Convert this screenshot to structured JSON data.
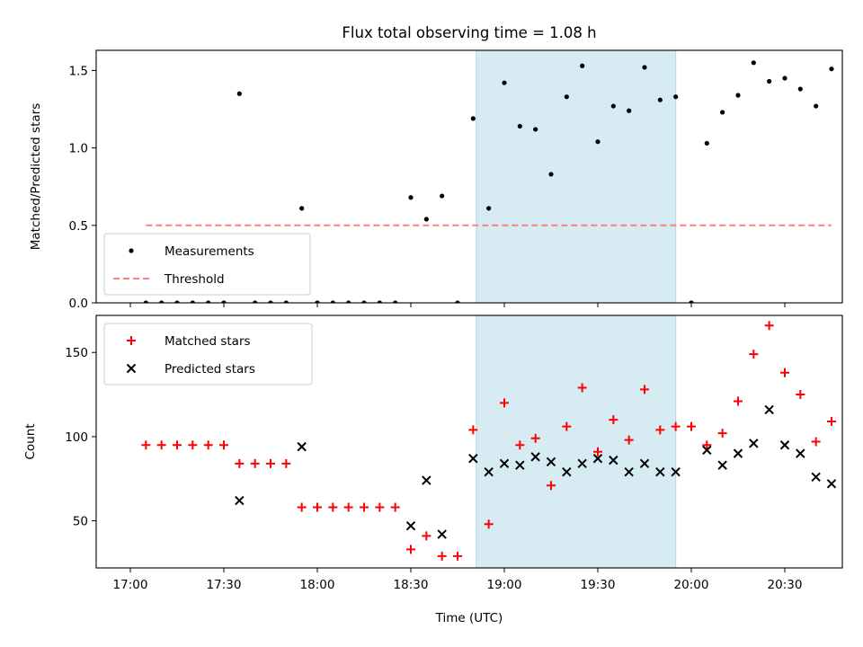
{
  "figure": {
    "title": "Flux total observing time = 1.08 h",
    "xlabel": "Time (UTC)",
    "x_ticks": [
      "17:00",
      "17:30",
      "18:00",
      "18:30",
      "19:00",
      "19:30",
      "20:00",
      "20:30"
    ],
    "shaded_interval": [
      "18:51",
      "19:55"
    ],
    "colors": {
      "shade": "#add8e6",
      "threshold": "#ff7f7f",
      "matched": "#ff0000",
      "predicted": "#000000",
      "measurement": "#000000"
    }
  },
  "chart_data": [
    {
      "type": "scatter",
      "panel": "top",
      "ylabel": "Matched/Predicted stars",
      "ylim": [
        0,
        1.63
      ],
      "yticks": [
        0.0,
        0.5,
        1.0,
        1.5
      ],
      "ytick_labels": [
        "0.0",
        "0.5",
        "1.0",
        "1.5"
      ],
      "legend_position": "lower-left",
      "series": [
        {
          "name": "Measurements",
          "marker": "dot",
          "points": [
            [
              "17:05",
              0
            ],
            [
              "17:10",
              0
            ],
            [
              "17:15",
              0
            ],
            [
              "17:20",
              0
            ],
            [
              "17:25",
              0
            ],
            [
              "17:30",
              0
            ],
            [
              "17:35",
              1.35
            ],
            [
              "17:40",
              0
            ],
            [
              "17:45",
              0
            ],
            [
              "17:50",
              0
            ],
            [
              "17:55",
              0.61
            ],
            [
              "18:00",
              0
            ],
            [
              "18:05",
              0
            ],
            [
              "18:10",
              0
            ],
            [
              "18:15",
              0
            ],
            [
              "18:20",
              0
            ],
            [
              "18:25",
              0
            ],
            [
              "18:30",
              0.68
            ],
            [
              "18:35",
              0.54
            ],
            [
              "18:40",
              0.69
            ],
            [
              "18:45",
              0
            ],
            [
              "18:50",
              1.19
            ],
            [
              "18:55",
              0.61
            ],
            [
              "19:00",
              1.42
            ],
            [
              "19:05",
              1.14
            ],
            [
              "19:10",
              1.12
            ],
            [
              "19:15",
              0.83
            ],
            [
              "19:20",
              1.33
            ],
            [
              "19:25",
              1.53
            ],
            [
              "19:30",
              1.04
            ],
            [
              "19:35",
              1.27
            ],
            [
              "19:40",
              1.24
            ],
            [
              "19:45",
              1.52
            ],
            [
              "19:50",
              1.31
            ],
            [
              "19:55",
              1.33
            ],
            [
              "20:00",
              0
            ],
            [
              "20:05",
              1.03
            ],
            [
              "20:10",
              1.23
            ],
            [
              "20:15",
              1.34
            ],
            [
              "20:20",
              1.55
            ],
            [
              "20:25",
              1.43
            ],
            [
              "20:30",
              1.45
            ],
            [
              "20:35",
              1.38
            ],
            [
              "20:40",
              1.27
            ],
            [
              "20:45",
              1.51
            ]
          ]
        },
        {
          "name": "Threshold",
          "marker": "dashed-line",
          "points": [
            [
              "17:05",
              0.5
            ],
            [
              "20:45",
              0.5
            ]
          ]
        }
      ]
    },
    {
      "type": "scatter",
      "panel": "bottom",
      "ylabel": "Count",
      "ylim": [
        22,
        172
      ],
      "yticks": [
        50,
        100,
        150
      ],
      "ytick_labels": [
        "50",
        "100",
        "150"
      ],
      "legend_position": "upper-left",
      "series": [
        {
          "name": "Matched stars",
          "marker": "plus",
          "points": [
            [
              "17:05",
              95
            ],
            [
              "17:10",
              95
            ],
            [
              "17:15",
              95
            ],
            [
              "17:20",
              95
            ],
            [
              "17:25",
              95
            ],
            [
              "17:30",
              95
            ],
            [
              "17:35",
              84
            ],
            [
              "17:40",
              84
            ],
            [
              "17:45",
              84
            ],
            [
              "17:50",
              84
            ],
            [
              "17:55",
              58
            ],
            [
              "18:00",
              58
            ],
            [
              "18:05",
              58
            ],
            [
              "18:10",
              58
            ],
            [
              "18:15",
              58
            ],
            [
              "18:20",
              58
            ],
            [
              "18:25",
              58
            ],
            [
              "18:30",
              33
            ],
            [
              "18:35",
              41
            ],
            [
              "18:40",
              29
            ],
            [
              "18:45",
              29
            ],
            [
              "18:50",
              104
            ],
            [
              "18:55",
              48
            ],
            [
              "19:00",
              120
            ],
            [
              "19:05",
              95
            ],
            [
              "19:10",
              99
            ],
            [
              "19:15",
              71
            ],
            [
              "19:20",
              106
            ],
            [
              "19:25",
              129
            ],
            [
              "19:30",
              91
            ],
            [
              "19:35",
              110
            ],
            [
              "19:40",
              98
            ],
            [
              "19:45",
              128
            ],
            [
              "19:50",
              104
            ],
            [
              "19:55",
              106
            ],
            [
              "20:00",
              106
            ],
            [
              "20:05",
              95
            ],
            [
              "20:10",
              102
            ],
            [
              "20:15",
              121
            ],
            [
              "20:20",
              149
            ],
            [
              "20:25",
              166
            ],
            [
              "20:30",
              138
            ],
            [
              "20:35",
              125
            ],
            [
              "20:40",
              97
            ],
            [
              "20:45",
              109
            ]
          ]
        },
        {
          "name": "Predicted stars",
          "marker": "x",
          "points": [
            [
              "17:35",
              62
            ],
            [
              "17:55",
              94
            ],
            [
              "18:30",
              47
            ],
            [
              "18:35",
              74
            ],
            [
              "18:40",
              42
            ],
            [
              "18:50",
              87
            ],
            [
              "18:55",
              79
            ],
            [
              "19:00",
              84
            ],
            [
              "19:05",
              83
            ],
            [
              "19:10",
              88
            ],
            [
              "19:15",
              85
            ],
            [
              "19:20",
              79
            ],
            [
              "19:25",
              84
            ],
            [
              "19:30",
              87
            ],
            [
              "19:35",
              86
            ],
            [
              "19:40",
              79
            ],
            [
              "19:45",
              84
            ],
            [
              "19:50",
              79
            ],
            [
              "19:55",
              79
            ],
            [
              "20:05",
              92
            ],
            [
              "20:10",
              83
            ],
            [
              "20:15",
              90
            ],
            [
              "20:20",
              96
            ],
            [
              "20:25",
              116
            ],
            [
              "20:30",
              95
            ],
            [
              "20:35",
              90
            ],
            [
              "20:40",
              76
            ],
            [
              "20:45",
              72
            ]
          ]
        }
      ]
    }
  ]
}
